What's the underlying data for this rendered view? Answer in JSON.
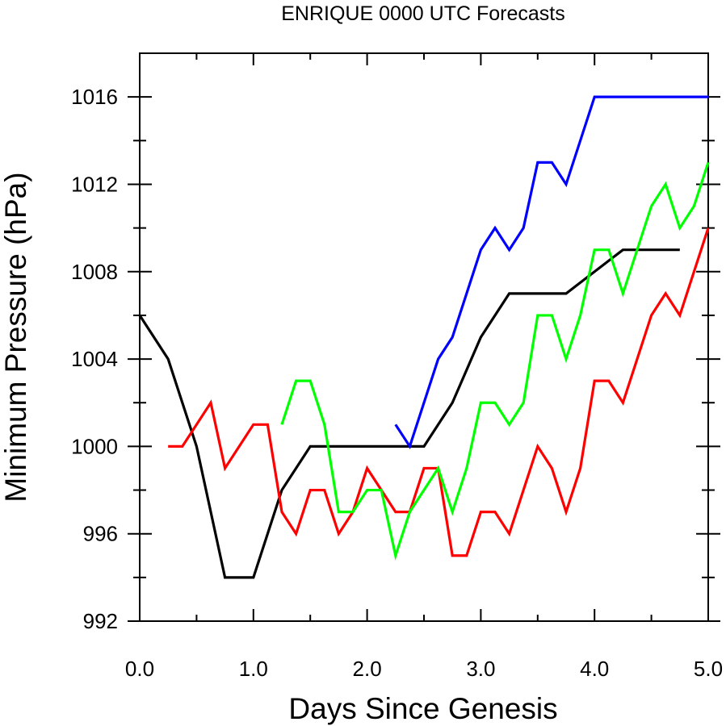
{
  "chart_data": {
    "type": "line",
    "title": "ENRIQUE 0000 UTC Forecasts",
    "xlabel": "Days Since Genesis",
    "ylabel": "Minimum Pressure (hPa)",
    "xlim": [
      0,
      5
    ],
    "ylim": [
      992,
      1018
    ],
    "x_ticks": [
      0,
      1,
      2,
      3,
      4,
      5
    ],
    "x_tick_labels": [
      "0.0",
      "1.0",
      "2.0",
      "3.0",
      "4.0",
      "5.0"
    ],
    "y_ticks": [
      992,
      996,
      1000,
      1004,
      1008,
      1012,
      1016
    ],
    "y_tick_labels": [
      "992",
      "996",
      "1000",
      "1004",
      "1008",
      "1012",
      "1016"
    ],
    "grid": false,
    "legend": "none",
    "series": [
      {
        "color": "#000000",
        "points": [
          [
            0,
            1006
          ],
          [
            0.25,
            1004
          ],
          [
            0.5,
            1000
          ],
          [
            0.75,
            994
          ],
          [
            1.0,
            994
          ],
          [
            1.25,
            998
          ],
          [
            1.5,
            1000
          ],
          [
            1.75,
            1000
          ],
          [
            2.0,
            1000
          ],
          [
            2.25,
            1000
          ],
          [
            2.5,
            1000
          ],
          [
            2.75,
            1002
          ],
          [
            3.0,
            1005
          ],
          [
            3.25,
            1007
          ],
          [
            3.5,
            1007
          ],
          [
            3.75,
            1007
          ],
          [
            4.0,
            1008
          ],
          [
            4.25,
            1009
          ],
          [
            4.5,
            1009
          ],
          [
            4.75,
            1009
          ]
        ]
      },
      {
        "color": "#ff0000",
        "points": [
          [
            0.25,
            1000
          ],
          [
            0.375,
            1000
          ],
          [
            0.5,
            1001
          ],
          [
            0.625,
            1002
          ],
          [
            0.75,
            999
          ],
          [
            0.875,
            1000
          ],
          [
            1.0,
            1001
          ],
          [
            1.125,
            1001
          ],
          [
            1.25,
            997
          ],
          [
            1.375,
            996
          ],
          [
            1.5,
            998
          ],
          [
            1.625,
            998
          ],
          [
            1.75,
            996
          ],
          [
            1.875,
            997
          ],
          [
            2.0,
            999
          ],
          [
            2.125,
            998
          ],
          [
            2.25,
            997
          ],
          [
            2.375,
            997
          ],
          [
            2.5,
            999
          ],
          [
            2.625,
            999
          ],
          [
            2.75,
            995
          ],
          [
            2.875,
            995
          ],
          [
            3.0,
            997
          ],
          [
            3.125,
            997
          ],
          [
            3.25,
            996
          ],
          [
            3.375,
            998
          ],
          [
            3.5,
            1000
          ],
          [
            3.625,
            999
          ],
          [
            3.75,
            997
          ],
          [
            3.875,
            999
          ],
          [
            4.0,
            1003
          ],
          [
            4.125,
            1003
          ],
          [
            4.25,
            1002
          ],
          [
            4.375,
            1004
          ],
          [
            4.5,
            1006
          ],
          [
            4.625,
            1007
          ],
          [
            4.75,
            1006
          ],
          [
            4.875,
            1008
          ],
          [
            5.0,
            1010
          ]
        ]
      },
      {
        "color": "#00ff00",
        "points": [
          [
            1.25,
            1001
          ],
          [
            1.375,
            1003
          ],
          [
            1.5,
            1003
          ],
          [
            1.625,
            1001
          ],
          [
            1.75,
            997
          ],
          [
            1.875,
            997
          ],
          [
            2.0,
            998
          ],
          [
            2.125,
            998
          ],
          [
            2.25,
            995
          ],
          [
            2.375,
            997
          ],
          [
            2.5,
            998
          ],
          [
            2.625,
            999
          ],
          [
            2.75,
            997
          ],
          [
            2.875,
            999
          ],
          [
            3.0,
            1002
          ],
          [
            3.125,
            1002
          ],
          [
            3.25,
            1001
          ],
          [
            3.375,
            1002
          ],
          [
            3.5,
            1006
          ],
          [
            3.625,
            1006
          ],
          [
            3.75,
            1004
          ],
          [
            3.875,
            1006
          ],
          [
            4.0,
            1009
          ],
          [
            4.125,
            1009
          ],
          [
            4.25,
            1007
          ],
          [
            4.375,
            1009
          ],
          [
            4.5,
            1011
          ],
          [
            4.625,
            1012
          ],
          [
            4.75,
            1010
          ],
          [
            4.875,
            1011
          ],
          [
            5.0,
            1013
          ]
        ]
      },
      {
        "color": "#0000ff",
        "points": [
          [
            2.25,
            1001
          ],
          [
            2.375,
            1000
          ],
          [
            2.5,
            1002
          ],
          [
            2.625,
            1004
          ],
          [
            2.75,
            1005
          ],
          [
            2.875,
            1007
          ],
          [
            3.0,
            1009
          ],
          [
            3.125,
            1010
          ],
          [
            3.25,
            1009
          ],
          [
            3.375,
            1010
          ],
          [
            3.5,
            1013
          ],
          [
            3.625,
            1013
          ],
          [
            3.75,
            1012
          ],
          [
            3.875,
            1014
          ],
          [
            4.0,
            1016
          ],
          [
            4.25,
            1016
          ],
          [
            4.5,
            1016
          ],
          [
            4.75,
            1016
          ],
          [
            5.0,
            1016
          ]
        ]
      }
    ]
  }
}
